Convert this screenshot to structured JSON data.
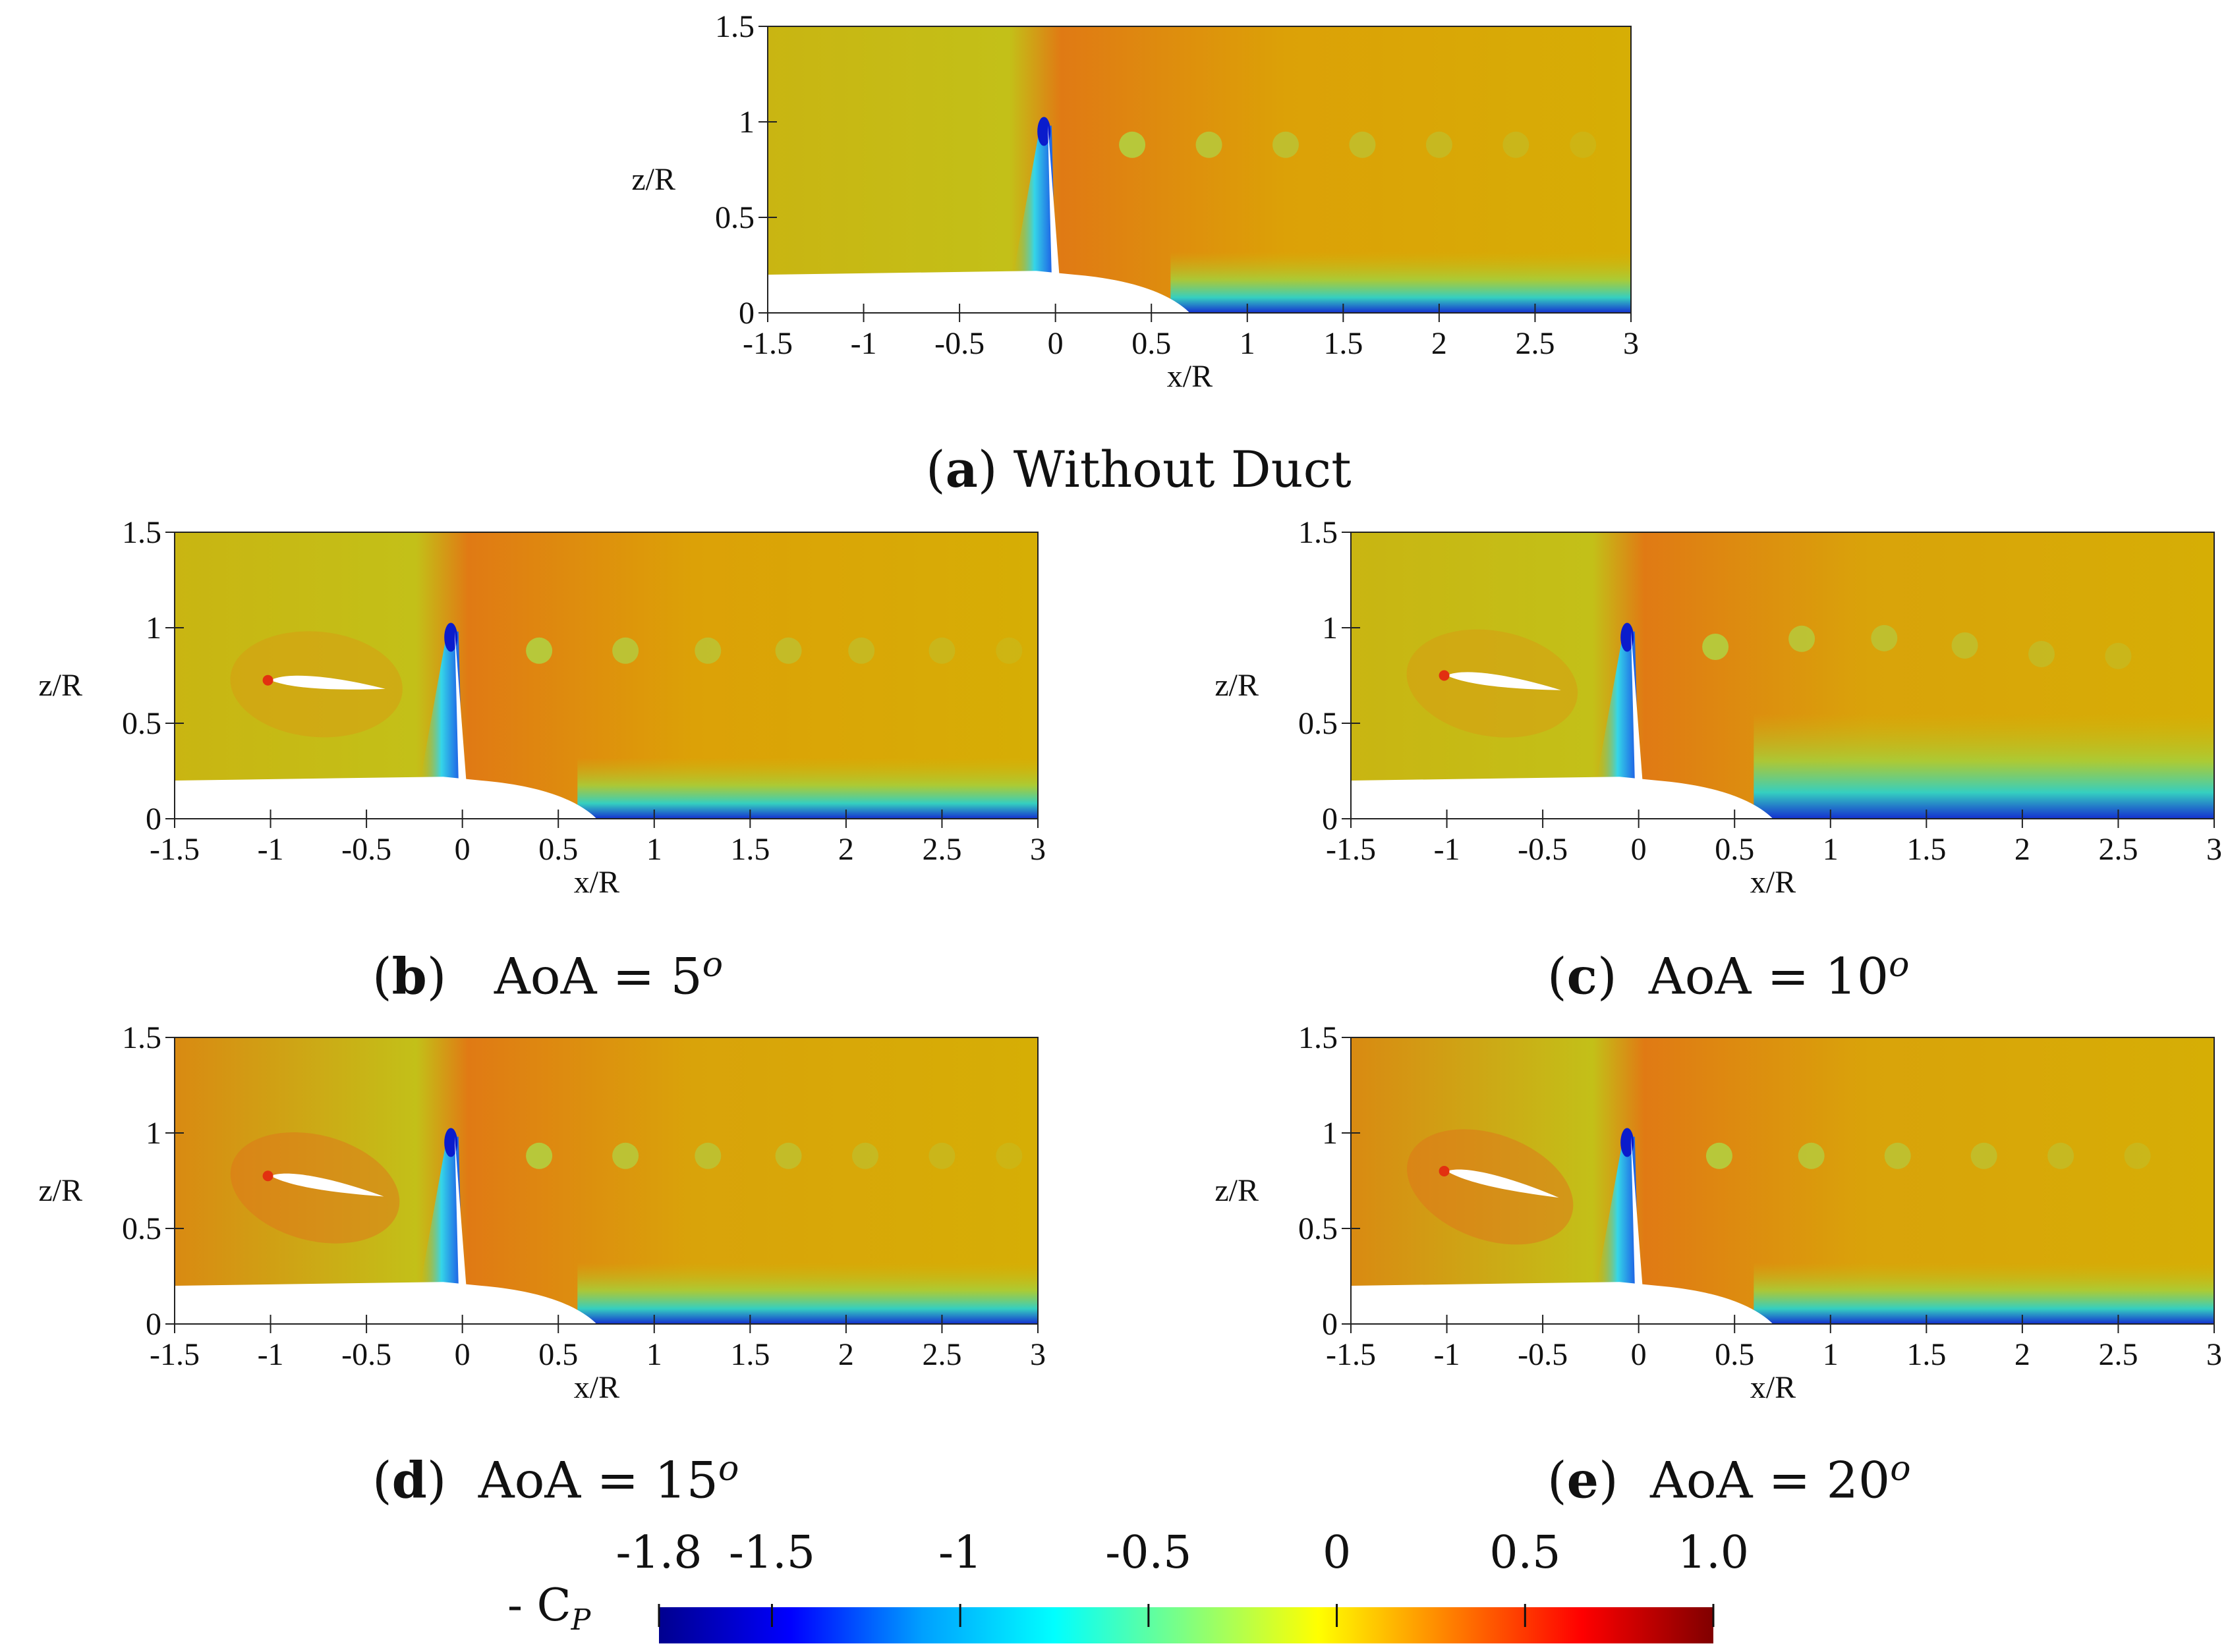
{
  "chart_data": [
    {
      "type": "heatmap",
      "panel_letter": "a",
      "caption": "Without Duct",
      "xlabel": "x/R",
      "ylabel": "z/R",
      "xlim": [
        -1.5,
        3
      ],
      "ylim": [
        0,
        1.5
      ],
      "xticks": [
        "-1.5",
        "-1",
        "-0.5",
        "0",
        "0.5",
        "1",
        "1.5",
        "2",
        "2.5",
        "3"
      ],
      "yticks": [
        "0",
        "0.5",
        "1",
        "1.5"
      ],
      "duct": false,
      "aoa_deg": null,
      "wake_tip_vortices_x": [
        0.4,
        0.8,
        1.2,
        1.6,
        2.0,
        2.4,
        2.75
      ]
    },
    {
      "type": "heatmap",
      "panel_letter": "b",
      "caption": "AoA = 5",
      "caption_sup": "o",
      "xlabel": "x/R",
      "ylabel": "z/R",
      "xlim": [
        -1.5,
        3
      ],
      "ylim": [
        0,
        1.5
      ],
      "xticks": [
        "-1.5",
        "-1",
        "-0.5",
        "0",
        "0.5",
        "1",
        "1.5",
        "2",
        "2.5",
        "3"
      ],
      "yticks": [
        "0",
        "0.5",
        "1",
        "1.5"
      ],
      "duct": true,
      "aoa_deg": 5,
      "wake_tip_vortices_x": [
        0.4,
        0.85,
        1.28,
        1.7,
        2.08,
        2.5,
        2.85
      ]
    },
    {
      "type": "heatmap",
      "panel_letter": "c",
      "caption": "AoA = 10",
      "caption_sup": "o",
      "xlabel": "x/R",
      "ylabel": "z/R",
      "xlim": [
        -1.5,
        3
      ],
      "ylim": [
        0,
        1.5
      ],
      "xticks": [
        "-1.5",
        "-1",
        "-0.5",
        "0",
        "0.5",
        "1",
        "1.5",
        "2",
        "2.5",
        "3"
      ],
      "yticks": [
        "0",
        "0.5",
        "1",
        "1.5"
      ],
      "duct": true,
      "aoa_deg": 10,
      "wake_tip_vortices_x": [
        0.4,
        0.85,
        1.28,
        1.7,
        2.1,
        2.5
      ]
    },
    {
      "type": "heatmap",
      "panel_letter": "d",
      "caption": "AoA = 15",
      "caption_sup": "o",
      "xlabel": "x/R",
      "ylabel": "z/R",
      "xlim": [
        -1.5,
        3
      ],
      "ylim": [
        0,
        1.5
      ],
      "xticks": [
        "-1.5",
        "-1",
        "-0.5",
        "0",
        "0.5",
        "1",
        "1.5",
        "2",
        "2.5",
        "3"
      ],
      "yticks": [
        "0",
        "0.5",
        "1",
        "1.5"
      ],
      "duct": true,
      "aoa_deg": 15,
      "wake_tip_vortices_x": [
        0.4,
        0.85,
        1.28,
        1.7,
        2.1,
        2.5,
        2.85
      ]
    },
    {
      "type": "heatmap",
      "panel_letter": "e",
      "caption": "AoA = 20",
      "caption_sup": "o",
      "xlabel": "x/R",
      "ylabel": "z/R",
      "xlim": [
        -1.5,
        3
      ],
      "ylim": [
        0,
        1.5
      ],
      "xticks": [
        "-1.5",
        "-1",
        "-0.5",
        "0",
        "0.5",
        "1",
        "1.5",
        "2",
        "2.5",
        "3"
      ],
      "yticks": [
        "0",
        "0.5",
        "1",
        "1.5"
      ],
      "duct": true,
      "aoa_deg": 20,
      "wake_tip_vortices_x": [
        0.42,
        0.9,
        1.35,
        1.8,
        2.2,
        2.6
      ]
    }
  ],
  "colorbar": {
    "title": "- C",
    "title_sub": "P",
    "range": [
      -1.8,
      1.0
    ],
    "tick_values": [
      -1.8,
      -1.5,
      -1,
      -0.5,
      0,
      0.5,
      1.0
    ],
    "tick_labels": [
      "-1.8",
      "-1.5",
      "-1",
      "-0.5",
      "0",
      "0.5",
      "1.0"
    ],
    "colormap": "jet",
    "stops": [
      "#00008f",
      "#0000ff",
      "#00a0ff",
      "#00ffff",
      "#80ff80",
      "#ffff00",
      "#ff8000",
      "#ff0000",
      "#800000"
    ]
  },
  "colors": {
    "background_field": "#d9b000",
    "field_green": "#b5c41a",
    "field_orange": "#e38a10",
    "low_blue": "#0d2bd9",
    "cyan": "#33d6e6",
    "body_white": "#ffffff"
  }
}
